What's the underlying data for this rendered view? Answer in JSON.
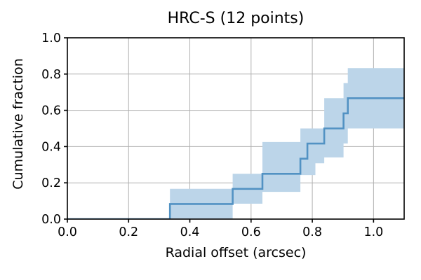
{
  "chart_data": {
    "type": "line",
    "subtype": "ecdf-step-with-confidence-band",
    "title": "HRC-S (12 points)",
    "xlabel": "Radial offset (arcsec)",
    "ylabel": "Cumulative fraction",
    "n_points": 12,
    "xlim": [
      0.0,
      1.1
    ],
    "ylim": [
      0.0,
      1.0
    ],
    "grid": true,
    "legend": "none",
    "x_ticks": [
      0.0,
      0.2,
      0.4,
      0.6,
      0.8,
      1.0
    ],
    "x_tick_labels": [
      "0.0",
      "0.2",
      "0.4",
      "0.6",
      "0.8",
      "1.0"
    ],
    "y_ticks": [
      0.0,
      0.2,
      0.4,
      0.6,
      0.8,
      1.0
    ],
    "y_tick_labels": [
      "0.0",
      "0.2",
      "0.4",
      "0.6",
      "0.8",
      "1.0"
    ],
    "line_color": "#5292c3",
    "band_color": "#bcd5e9",
    "grid_color": "#b0b0b0",
    "series": [
      {
        "name": "cumulative-fraction-ecdf",
        "step_x": [
          0.335,
          0.54,
          0.637,
          0.761,
          0.784,
          0.839,
          0.902,
          0.916
        ],
        "step_y": [
          0.0833,
          0.1667,
          0.25,
          0.3333,
          0.4167,
          0.5,
          0.5833,
          0.6667
        ],
        "start_y": 0.0,
        "end_x": 1.1
      }
    ],
    "band_segments": [
      {
        "x0": 0.335,
        "x1": 0.54,
        "lo": 0.0,
        "hi": 0.167
      },
      {
        "x0": 0.54,
        "x1": 0.637,
        "lo": 0.085,
        "hi": 0.25
      },
      {
        "x0": 0.637,
        "x1": 0.761,
        "lo": 0.15,
        "hi": 0.425
      },
      {
        "x0": 0.761,
        "x1": 0.81,
        "lo": 0.243,
        "hi": 0.5
      },
      {
        "x0": 0.81,
        "x1": 0.839,
        "lo": 0.308,
        "hi": 0.5
      },
      {
        "x0": 0.839,
        "x1": 0.902,
        "lo": 0.34,
        "hi": 0.667
      },
      {
        "x0": 0.902,
        "x1": 0.916,
        "lo": 0.417,
        "hi": 0.75
      },
      {
        "x0": 0.916,
        "x1": 1.1,
        "lo": 0.5,
        "hi": 0.833
      }
    ]
  }
}
